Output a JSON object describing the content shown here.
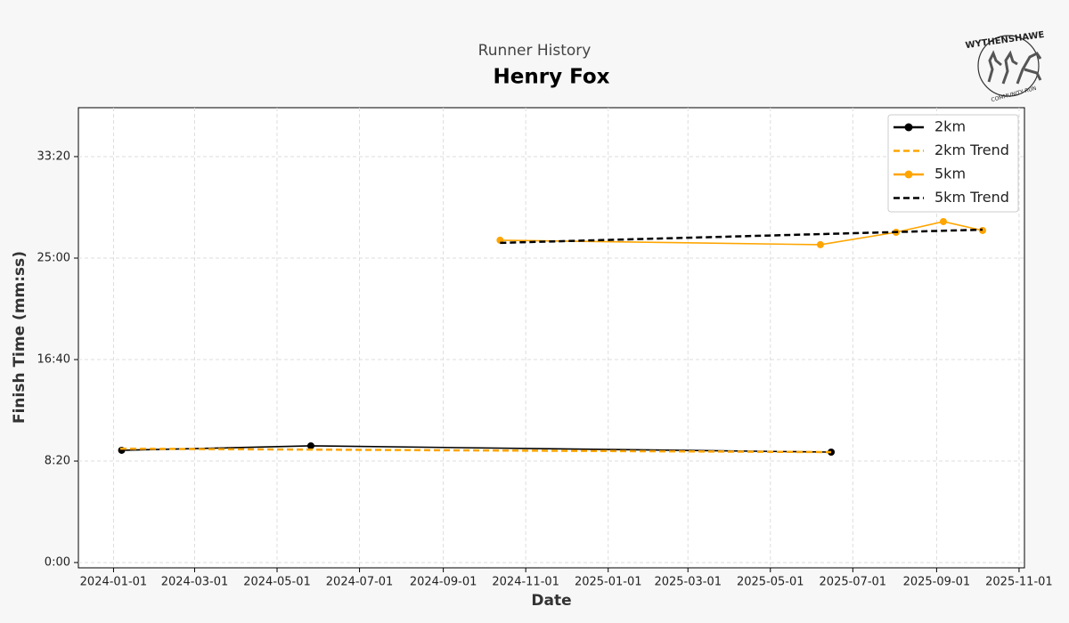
{
  "chart_data": {
    "type": "line",
    "title": "Henry Fox",
    "subtitle": "Runner History",
    "xlabel": "Date",
    "ylabel": "Finish Time (mm:ss)",
    "logo": {
      "top": "WYTHENSHAWE",
      "bottom": "COMMUNITY RUN"
    },
    "xlim": [
      "2023-12-06",
      "2025-11-05"
    ],
    "xticks": [
      "2024-01-01",
      "2024-03-01",
      "2024-05-01",
      "2024-07-01",
      "2024-09-01",
      "2024-11-01",
      "2025-01-01",
      "2025-03-01",
      "2025-05-01",
      "2025-07-01",
      "2025-09-01",
      "2025-11-01"
    ],
    "ylim": [
      -26,
      2241
    ],
    "yticks": [
      {
        "value": 0,
        "label": "0:00"
      },
      {
        "value": 500,
        "label": "8:20"
      },
      {
        "value": 1000,
        "label": "16:40"
      },
      {
        "value": 1500,
        "label": "25:00"
      },
      {
        "value": 2000,
        "label": "33:20"
      }
    ],
    "grid": true,
    "legend": "upper right",
    "series": [
      {
        "name": "2km",
        "color": "#000000",
        "style": "solid",
        "markers": true,
        "x": [
          "2024-01-07",
          "2024-05-26",
          "2025-06-15"
        ],
        "values": [
          553,
          575,
          544
        ]
      },
      {
        "name": "2km Trend",
        "color": "#ffa500",
        "style": "dashed",
        "markers": false,
        "x": [
          "2024-01-06",
          "2025-06-15"
        ],
        "values": [
          561,
          544
        ]
      },
      {
        "name": "5km",
        "color": "#ffa500",
        "style": "solid",
        "markers": true,
        "x": [
          "2024-10-13",
          "2025-06-07",
          "2025-08-02",
          "2025-09-06",
          "2025-10-05"
        ],
        "values": [
          1588,
          1566,
          1627,
          1680,
          1636
        ]
      },
      {
        "name": "5km Trend",
        "color": "#000000",
        "style": "dashed",
        "markers": false,
        "x": [
          "2024-10-13",
          "2025-10-05"
        ],
        "values": [
          1575,
          1640
        ]
      }
    ]
  }
}
